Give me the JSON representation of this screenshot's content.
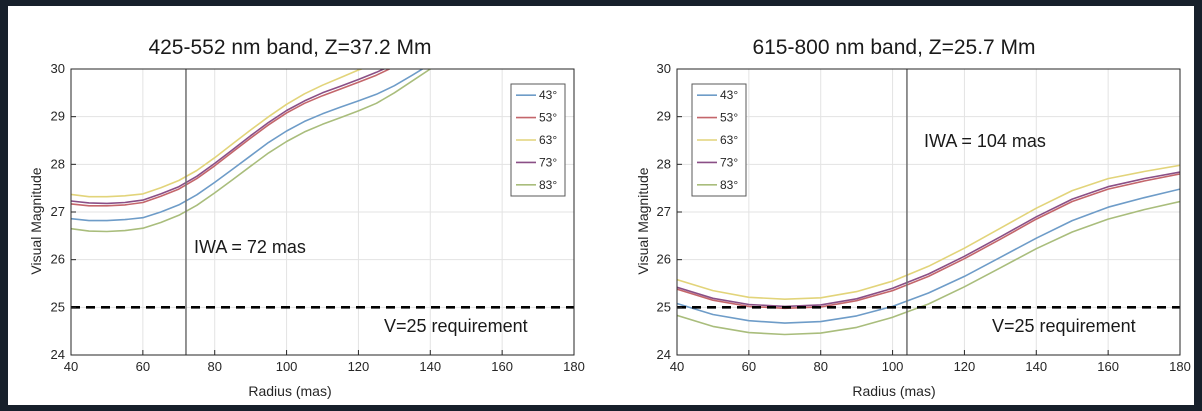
{
  "colors": {
    "series": [
      "#6e9cc8",
      "#c4666b",
      "#e2d47a",
      "#8a4f86",
      "#a9bd7c"
    ],
    "grid": "#e3e3e3",
    "axis": "#262626",
    "iwa_line": "#6f6f6f",
    "requirement_line": "#000000"
  },
  "chart_data": [
    {
      "type": "line",
      "title": "425-552 nm band, Z=37.2 Mm",
      "xlabel": "Radius (mas)",
      "ylabel": "Visual Magnitude",
      "xlim": [
        40,
        180
      ],
      "ylim": [
        24,
        30
      ],
      "xticks": [
        40,
        60,
        80,
        100,
        120,
        140,
        160,
        180
      ],
      "yticks": [
        24,
        25,
        26,
        27,
        28,
        29,
        30
      ],
      "grid": true,
      "legend_position": "top-right",
      "vline": {
        "x": 72,
        "label": "IWA = 72 mas"
      },
      "hline": {
        "y": 25,
        "label": "V=25 requirement",
        "style": "dashed"
      },
      "x": [
        40,
        45,
        50,
        55,
        60,
        65,
        70,
        75,
        80,
        85,
        90,
        95,
        100,
        105,
        110,
        115,
        120,
        125,
        130,
        135,
        140
      ],
      "series": [
        {
          "name": "43°",
          "values": [
            26.86,
            26.82,
            26.82,
            26.84,
            26.88,
            27.0,
            27.15,
            27.36,
            27.62,
            27.9,
            28.18,
            28.46,
            28.7,
            28.9,
            29.06,
            29.2,
            29.33,
            29.47,
            29.65,
            29.87,
            30.1
          ]
        },
        {
          "name": "53°",
          "values": [
            27.17,
            27.13,
            27.13,
            27.15,
            27.2,
            27.33,
            27.48,
            27.7,
            27.97,
            28.26,
            28.55,
            28.83,
            29.08,
            29.28,
            29.44,
            29.58,
            29.72,
            29.87,
            30.05,
            30.2,
            30.3
          ]
        },
        {
          "name": "63°",
          "values": [
            27.37,
            27.32,
            27.32,
            27.34,
            27.38,
            27.51,
            27.66,
            27.87,
            28.14,
            28.43,
            28.72,
            29.0,
            29.26,
            29.48,
            29.66,
            29.82,
            29.98,
            30.1,
            30.2,
            30.3,
            30.4
          ]
        },
        {
          "name": "73°",
          "values": [
            27.23,
            27.19,
            27.18,
            27.2,
            27.25,
            27.38,
            27.53,
            27.75,
            28.02,
            28.31,
            28.6,
            28.88,
            29.13,
            29.33,
            29.5,
            29.64,
            29.78,
            29.93,
            30.1,
            30.2,
            30.3
          ]
        },
        {
          "name": "83°",
          "values": [
            26.65,
            26.6,
            26.59,
            26.61,
            26.66,
            26.78,
            26.93,
            27.14,
            27.4,
            27.68,
            27.96,
            28.24,
            28.48,
            28.68,
            28.84,
            28.98,
            29.12,
            29.28,
            29.5,
            29.75,
            30.0
          ]
        }
      ]
    },
    {
      "type": "line",
      "title": "615-800 nm band, Z=25.7 Mm",
      "xlabel": "Radius (mas)",
      "ylabel": "Visual Magnitude",
      "xlim": [
        40,
        180
      ],
      "ylim": [
        24,
        30
      ],
      "xticks": [
        40,
        60,
        80,
        100,
        120,
        140,
        160,
        180
      ],
      "yticks": [
        24,
        25,
        26,
        27,
        28,
        29,
        30
      ],
      "grid": true,
      "legend_position": "top-left",
      "vline": {
        "x": 104,
        "label": "IWA = 104 mas"
      },
      "hline": {
        "y": 25,
        "label": "V=25 requirement",
        "style": "dashed"
      },
      "x": [
        40,
        50,
        60,
        70,
        80,
        90,
        100,
        110,
        120,
        130,
        140,
        150,
        160,
        170,
        180
      ],
      "series": [
        {
          "name": "43°",
          "values": [
            25.08,
            24.85,
            24.72,
            24.67,
            24.7,
            24.82,
            25.02,
            25.3,
            25.65,
            26.05,
            26.45,
            26.82,
            27.1,
            27.3,
            27.48
          ]
        },
        {
          "name": "53°",
          "values": [
            25.38,
            25.15,
            25.02,
            24.98,
            25.01,
            25.14,
            25.35,
            25.65,
            26.02,
            26.43,
            26.85,
            27.22,
            27.48,
            27.65,
            27.8
          ]
        },
        {
          "name": "63°",
          "values": [
            25.58,
            25.35,
            25.21,
            25.17,
            25.2,
            25.33,
            25.55,
            25.86,
            26.24,
            26.66,
            27.08,
            27.45,
            27.7,
            27.85,
            27.98
          ]
        },
        {
          "name": "73°",
          "values": [
            25.42,
            25.19,
            25.06,
            25.02,
            25.05,
            25.18,
            25.4,
            25.7,
            26.07,
            26.48,
            26.9,
            27.27,
            27.53,
            27.7,
            27.84
          ]
        },
        {
          "name": "83°",
          "values": [
            24.83,
            24.6,
            24.47,
            24.43,
            24.46,
            24.58,
            24.79,
            25.07,
            25.43,
            25.83,
            26.23,
            26.58,
            26.85,
            27.05,
            27.22
          ]
        }
      ]
    }
  ]
}
